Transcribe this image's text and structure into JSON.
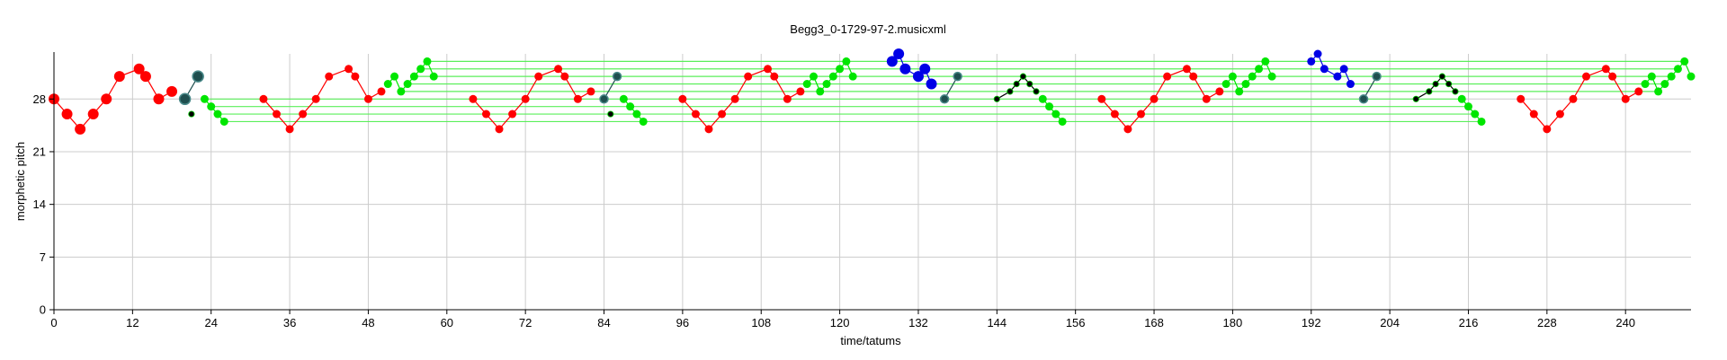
{
  "chart_data": {
    "type": "scatter",
    "title": "Begg3_0-1729-97-2.musicxml",
    "xlabel": "time/tatums",
    "ylabel": "morphetic pitch",
    "xlim": [
      0,
      250
    ],
    "ylim": [
      0,
      34
    ],
    "xticks": [
      0,
      12,
      24,
      36,
      48,
      60,
      72,
      84,
      96,
      108,
      120,
      132,
      144,
      156,
      168,
      180,
      192,
      204,
      216,
      228,
      240
    ],
    "yticks": [
      0,
      7,
      14,
      21,
      28
    ],
    "grid": true,
    "colors": {
      "red": "#ff0000",
      "green": "#00e600",
      "blue": "#0000e6",
      "teal": "#1f4f4f",
      "black": "#000000",
      "hline": "#5aef5a",
      "grid": "#cccccc"
    },
    "patterns": [
      {
        "color": "red",
        "size": "large",
        "points": [
          [
            0,
            28
          ],
          [
            2,
            26
          ],
          [
            4,
            24
          ],
          [
            6,
            26
          ],
          [
            8,
            28
          ],
          [
            10,
            31
          ],
          [
            13,
            32
          ],
          [
            14,
            31
          ],
          [
            16,
            28
          ],
          [
            18,
            29
          ]
        ]
      },
      {
        "color": "teal",
        "size": "large",
        "points": [
          [
            20,
            28
          ],
          [
            22,
            31
          ]
        ]
      },
      {
        "color": "black",
        "size": "small",
        "points": [
          [
            21,
            26
          ]
        ]
      },
      {
        "color": "green",
        "size": "medium",
        "points": [
          [
            23,
            28
          ],
          [
            24,
            27
          ],
          [
            25,
            26
          ],
          [
            26,
            25
          ]
        ]
      },
      {
        "color": "red",
        "size": "medium",
        "points": [
          [
            32,
            28
          ],
          [
            34,
            26
          ],
          [
            36,
            24
          ],
          [
            38,
            26
          ],
          [
            40,
            28
          ],
          [
            42,
            31
          ],
          [
            45,
            32
          ],
          [
            46,
            31
          ],
          [
            48,
            28
          ],
          [
            50,
            29
          ]
        ]
      },
      {
        "color": "green",
        "size": "medium",
        "points": [
          [
            51,
            30
          ],
          [
            52,
            31
          ],
          [
            53,
            29
          ],
          [
            54,
            30
          ],
          [
            55,
            31
          ],
          [
            56,
            32
          ],
          [
            57,
            33
          ],
          [
            58,
            31
          ]
        ]
      },
      {
        "color": "red",
        "size": "medium",
        "points": [
          [
            64,
            28
          ],
          [
            66,
            26
          ],
          [
            68,
            24
          ],
          [
            70,
            26
          ],
          [
            72,
            28
          ],
          [
            74,
            31
          ],
          [
            77,
            32
          ],
          [
            78,
            31
          ],
          [
            80,
            28
          ],
          [
            82,
            29
          ]
        ]
      },
      {
        "color": "teal",
        "size": "medium",
        "points": [
          [
            84,
            28
          ],
          [
            86,
            31
          ]
        ]
      },
      {
        "color": "black",
        "size": "small",
        "points": [
          [
            85,
            26
          ]
        ]
      },
      {
        "color": "green",
        "size": "medium",
        "points": [
          [
            87,
            28
          ],
          [
            88,
            27
          ],
          [
            89,
            26
          ],
          [
            90,
            25
          ]
        ]
      },
      {
        "color": "red",
        "size": "medium",
        "points": [
          [
            96,
            28
          ],
          [
            98,
            26
          ],
          [
            100,
            24
          ],
          [
            102,
            26
          ],
          [
            104,
            28
          ],
          [
            106,
            31
          ],
          [
            109,
            32
          ],
          [
            110,
            31
          ],
          [
            112,
            28
          ],
          [
            114,
            29
          ]
        ]
      },
      {
        "color": "green",
        "size": "medium",
        "points": [
          [
            115,
            30
          ],
          [
            116,
            31
          ],
          [
            117,
            29
          ],
          [
            118,
            30
          ],
          [
            119,
            31
          ],
          [
            120,
            32
          ],
          [
            121,
            33
          ],
          [
            122,
            31
          ]
        ]
      },
      {
        "color": "blue",
        "size": "large",
        "points": [
          [
            128,
            33
          ],
          [
            129,
            34
          ],
          [
            130,
            32
          ],
          [
            132,
            31
          ],
          [
            133,
            32
          ],
          [
            134,
            30
          ]
        ]
      },
      {
        "color": "teal",
        "size": "medium",
        "points": [
          [
            136,
            28
          ],
          [
            138,
            31
          ]
        ]
      },
      {
        "color": "black",
        "size": "small",
        "points": [
          [
            144,
            28
          ],
          [
            146,
            29
          ],
          [
            147,
            30
          ],
          [
            148,
            31
          ],
          [
            149,
            30
          ],
          [
            150,
            29
          ]
        ]
      },
      {
        "color": "green",
        "size": "medium",
        "points": [
          [
            151,
            28
          ],
          [
            152,
            27
          ],
          [
            153,
            26
          ],
          [
            154,
            25
          ]
        ]
      },
      {
        "color": "red",
        "size": "medium",
        "points": [
          [
            160,
            28
          ],
          [
            162,
            26
          ],
          [
            164,
            24
          ],
          [
            166,
            26
          ],
          [
            168,
            28
          ],
          [
            170,
            31
          ],
          [
            173,
            32
          ],
          [
            174,
            31
          ],
          [
            176,
            28
          ],
          [
            178,
            29
          ]
        ]
      },
      {
        "color": "green",
        "size": "medium",
        "points": [
          [
            179,
            30
          ],
          [
            180,
            31
          ],
          [
            181,
            29
          ],
          [
            182,
            30
          ],
          [
            183,
            31
          ],
          [
            184,
            32
          ],
          [
            185,
            33
          ],
          [
            186,
            31
          ]
        ]
      },
      {
        "color": "blue",
        "size": "medium",
        "points": [
          [
            192,
            33
          ],
          [
            193,
            34
          ],
          [
            194,
            32
          ],
          [
            196,
            31
          ],
          [
            197,
            32
          ],
          [
            198,
            30
          ]
        ]
      },
      {
        "color": "teal",
        "size": "medium",
        "points": [
          [
            200,
            28
          ],
          [
            202,
            31
          ]
        ]
      },
      {
        "color": "black",
        "size": "small",
        "points": [
          [
            208,
            28
          ],
          [
            210,
            29
          ],
          [
            211,
            30
          ],
          [
            212,
            31
          ],
          [
            213,
            30
          ],
          [
            214,
            29
          ]
        ]
      },
      {
        "color": "green",
        "size": "medium",
        "points": [
          [
            215,
            28
          ],
          [
            216,
            27
          ],
          [
            217,
            26
          ],
          [
            218,
            25
          ]
        ]
      },
      {
        "color": "red",
        "size": "medium",
        "points": [
          [
            224,
            28
          ],
          [
            226,
            26
          ],
          [
            228,
            24
          ],
          [
            230,
            26
          ],
          [
            232,
            28
          ],
          [
            234,
            31
          ],
          [
            237,
            32
          ],
          [
            238,
            31
          ],
          [
            240,
            28
          ],
          [
            242,
            29
          ]
        ]
      },
      {
        "color": "green",
        "size": "medium",
        "points": [
          [
            243,
            30
          ],
          [
            244,
            31
          ],
          [
            245,
            29
          ],
          [
            246,
            30
          ],
          [
            247,
            31
          ],
          [
            248,
            32
          ],
          [
            249,
            33
          ],
          [
            250,
            31
          ]
        ]
      }
    ],
    "hlines": [
      {
        "y": 25,
        "x": [
          26,
          218
        ]
      },
      {
        "y": 26,
        "x": [
          25,
          217
        ]
      },
      {
        "y": 27,
        "x": [
          24,
          216
        ]
      },
      {
        "y": 28,
        "x": [
          23,
          215
        ]
      },
      {
        "y": 29,
        "x": [
          53,
          245
        ]
      },
      {
        "y": 30,
        "x": [
          54,
          246
        ]
      },
      {
        "y": 31,
        "x": [
          55,
          247
        ]
      },
      {
        "y": 32,
        "x": [
          56,
          248
        ]
      },
      {
        "y": 33,
        "x": [
          57,
          249
        ]
      }
    ]
  }
}
